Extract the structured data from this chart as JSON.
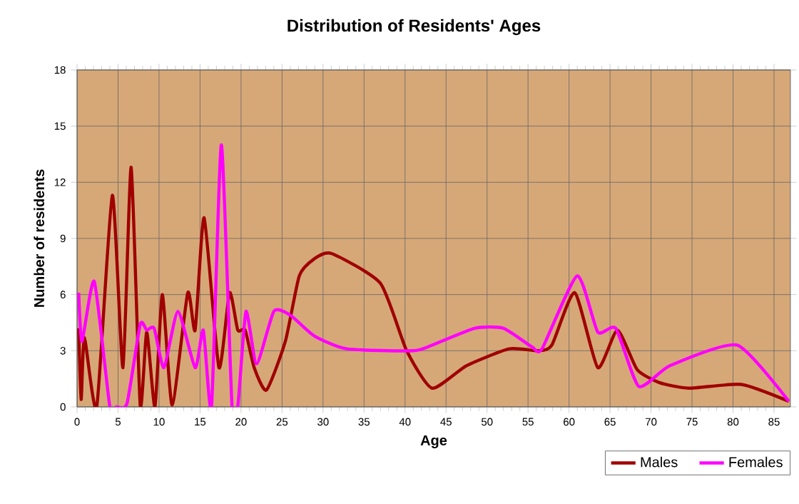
{
  "chart_data": {
    "type": "line",
    "title": "Distribution of Residents' Ages",
    "xlabel": "Age",
    "ylabel": "Number of residents",
    "xlim": [
      0,
      87
    ],
    "xticks": [
      0,
      5,
      10,
      15,
      20,
      25,
      30,
      35,
      40,
      45,
      50,
      55,
      60,
      65,
      70,
      75,
      80,
      85
    ],
    "ylim": [
      0,
      18
    ],
    "yticks": [
      0,
      3,
      6,
      9,
      12,
      15,
      18
    ],
    "grid": true,
    "legend": "bottom right",
    "marker": "none",
    "line_style": "solid",
    "series": [
      {
        "name": "Males",
        "color": "#a00000",
        "x": [
          0.2,
          0.5,
          0.9,
          2.4,
          4.3,
          5.6,
          6.6,
          7.7,
          8.5,
          9.5,
          10.4,
          11.6,
          13.5,
          14.4,
          15.5,
          17.3,
          18.6,
          19.6,
          20.5,
          21.6,
          23.1,
          25.4,
          27.1,
          28.9,
          31,
          37,
          40.2,
          43.3,
          47.5,
          52.7,
          56.2,
          57.9,
          60.7,
          63.5,
          65.9,
          68.3,
          71,
          74.6,
          81,
          86.8
        ],
        "values": [
          4.2,
          0.4,
          3.7,
          0,
          11.3,
          2.1,
          12.8,
          0.1,
          4,
          0,
          6,
          0.1,
          6.1,
          4.1,
          10.1,
          2.1,
          6.1,
          4.1,
          4.1,
          2.1,
          0.9,
          3.5,
          7,
          7.9,
          8.2,
          6.6,
          3,
          1,
          2.2,
          3.1,
          3,
          3.3,
          6.1,
          2.1,
          4.1,
          2,
          1.3,
          1,
          1.2,
          0.3
        ]
      },
      {
        "name": "Females",
        "color": "#ff00ff",
        "x": [
          0.2,
          0.6,
          2.1,
          4,
          4.8,
          6.1,
          7.7,
          8.5,
          9.4,
          10.6,
          12.3,
          14.4,
          15.4,
          16.4,
          17.6,
          18.9,
          19.6,
          20.6,
          21.9,
          24,
          26,
          28.9,
          32.9,
          41,
          43.3,
          48.5,
          52,
          55.5,
          56.7,
          61,
          63.5,
          65.7,
          68.5,
          72.3,
          80.5,
          86.8
        ],
        "values": [
          6.1,
          3.5,
          6.7,
          0,
          0,
          0.2,
          4.4,
          4.1,
          4.2,
          2.1,
          5.1,
          2.1,
          4.1,
          0,
          14,
          0,
          0,
          5.1,
          2.3,
          5.1,
          4.9,
          3.8,
          3.1,
          3,
          3.3,
          4.2,
          4.2,
          3.2,
          3.1,
          7,
          4,
          4.2,
          1.1,
          2.2,
          3.3,
          0.3
        ]
      }
    ]
  }
}
